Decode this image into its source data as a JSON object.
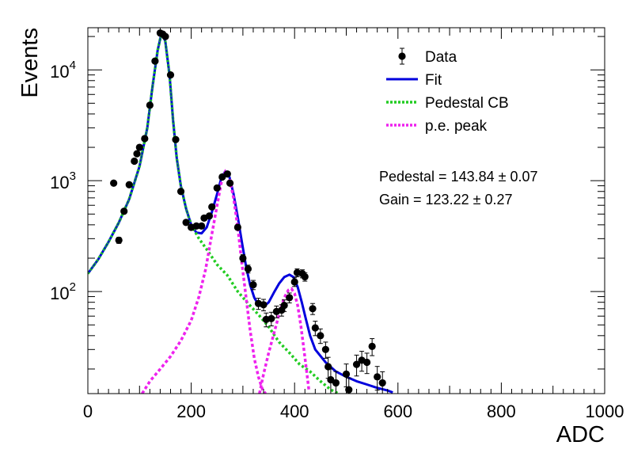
{
  "chart_data": {
    "type": "scatter",
    "xlabel": "ADC",
    "ylabel": "Events",
    "xlim": [
      0,
      1000
    ],
    "ylim": [
      12,
      24000
    ],
    "log_y": true,
    "grid": false,
    "legend_position": "top-right",
    "x_ticks": [
      {
        "value": 0,
        "label": "0"
      },
      {
        "value": 200,
        "label": "200"
      },
      {
        "value": 400,
        "label": "400"
      },
      {
        "value": 600,
        "label": "600"
      },
      {
        "value": 800,
        "label": "800"
      },
      {
        "value": 1000,
        "label": "1000"
      }
    ],
    "y_ticks": [
      {
        "value": 100,
        "base": "10",
        "exp": "2"
      },
      {
        "value": 1000,
        "base": "10",
        "exp": "3"
      },
      {
        "value": 10000,
        "base": "10",
        "exp": "4"
      }
    ],
    "legend": [
      {
        "label": "Data",
        "style": "marker",
        "color": "#000000"
      },
      {
        "label": "Fit",
        "style": "solid",
        "color": "#0000dd"
      },
      {
        "label": "Pedestal CB",
        "style": "dotted",
        "color": "#22cc22"
      },
      {
        "label": "p.e. peak",
        "style": "dotted",
        "color": "#ee22ee"
      }
    ],
    "annotations": [
      "Pedestal = 143.84 ± 0.07",
      "Gain = 123.22 ± 0.27"
    ],
    "series": [
      {
        "name": "Data",
        "color": "#000000",
        "points": [
          {
            "x": 50,
            "y": 950,
            "err": 30
          },
          {
            "x": 60,
            "y": 290,
            "err": 18
          },
          {
            "x": 70,
            "y": 530,
            "err": 24
          },
          {
            "x": 80,
            "y": 920,
            "err": 30
          },
          {
            "x": 90,
            "y": 1500,
            "err": 40
          },
          {
            "x": 95,
            "y": 1750,
            "err": 42
          },
          {
            "x": 100,
            "y": 2000,
            "err": 45
          },
          {
            "x": 110,
            "y": 2400,
            "err": 50
          },
          {
            "x": 120,
            "y": 4800,
            "err": 70
          },
          {
            "x": 130,
            "y": 12000,
            "err": 110
          },
          {
            "x": 140,
            "y": 21500,
            "err": 150
          },
          {
            "x": 145,
            "y": 21000,
            "err": 150
          },
          {
            "x": 150,
            "y": 20000,
            "err": 140
          },
          {
            "x": 160,
            "y": 9000,
            "err": 95
          },
          {
            "x": 170,
            "y": 2350,
            "err": 48
          },
          {
            "x": 180,
            "y": 800,
            "err": 28
          },
          {
            "x": 190,
            "y": 420,
            "err": 20
          },
          {
            "x": 200,
            "y": 380,
            "err": 20
          },
          {
            "x": 210,
            "y": 390,
            "err": 20
          },
          {
            "x": 220,
            "y": 390,
            "err": 20
          },
          {
            "x": 225,
            "y": 460,
            "err": 22
          },
          {
            "x": 235,
            "y": 480,
            "err": 22
          },
          {
            "x": 240,
            "y": 580,
            "err": 24
          },
          {
            "x": 250,
            "y": 860,
            "err": 30
          },
          {
            "x": 260,
            "y": 1080,
            "err": 33
          },
          {
            "x": 270,
            "y": 1150,
            "err": 34
          },
          {
            "x": 275,
            "y": 950,
            "err": 31
          },
          {
            "x": 290,
            "y": 380,
            "err": 20
          },
          {
            "x": 300,
            "y": 200,
            "err": 15
          },
          {
            "x": 310,
            "y": 160,
            "err": 13
          },
          {
            "x": 320,
            "y": 115,
            "err": 11
          },
          {
            "x": 330,
            "y": 78,
            "err": 9
          },
          {
            "x": 340,
            "y": 76,
            "err": 9
          },
          {
            "x": 345,
            "y": 56,
            "err": 8
          },
          {
            "x": 355,
            "y": 57,
            "err": 8
          },
          {
            "x": 365,
            "y": 66,
            "err": 8
          },
          {
            "x": 375,
            "y": 68,
            "err": 8
          },
          {
            "x": 380,
            "y": 75,
            "err": 9
          },
          {
            "x": 390,
            "y": 88,
            "err": 9
          },
          {
            "x": 400,
            "y": 122,
            "err": 11
          },
          {
            "x": 405,
            "y": 148,
            "err": 12
          },
          {
            "x": 415,
            "y": 145,
            "err": 12
          },
          {
            "x": 420,
            "y": 136,
            "err": 12
          },
          {
            "x": 435,
            "y": 70,
            "err": 8
          },
          {
            "x": 440,
            "y": 47,
            "err": 7
          },
          {
            "x": 450,
            "y": 40,
            "err": 6
          },
          {
            "x": 460,
            "y": 30,
            "err": 5
          },
          {
            "x": 465,
            "y": 21,
            "err": 4.5
          },
          {
            "x": 470,
            "y": 16,
            "err": 4
          },
          {
            "x": 480,
            "y": 15,
            "err": 4
          },
          {
            "x": 500,
            "y": 18,
            "err": 4.2
          },
          {
            "x": 505,
            "y": 13,
            "err": 3.6
          },
          {
            "x": 520,
            "y": 22,
            "err": 4.7
          },
          {
            "x": 530,
            "y": 24,
            "err": 4.9
          },
          {
            "x": 540,
            "y": 23,
            "err": 4.8
          },
          {
            "x": 550,
            "y": 32,
            "err": 5.6
          },
          {
            "x": 560,
            "y": 17,
            "err": 4.1
          },
          {
            "x": 570,
            "y": 15,
            "err": 3.9
          }
        ]
      },
      {
        "name": "Fit",
        "color": "#0000dd",
        "points": [
          {
            "x": 0,
            "y": 145
          },
          {
            "x": 20,
            "y": 195
          },
          {
            "x": 40,
            "y": 280
          },
          {
            "x": 60,
            "y": 420
          },
          {
            "x": 80,
            "y": 680
          },
          {
            "x": 100,
            "y": 1350
          },
          {
            "x": 115,
            "y": 3000
          },
          {
            "x": 125,
            "y": 7000
          },
          {
            "x": 135,
            "y": 15000
          },
          {
            "x": 143,
            "y": 22000
          },
          {
            "x": 150,
            "y": 18000
          },
          {
            "x": 158,
            "y": 9000
          },
          {
            "x": 165,
            "y": 3500
          },
          {
            "x": 172,
            "y": 1600
          },
          {
            "x": 180,
            "y": 900
          },
          {
            "x": 190,
            "y": 560
          },
          {
            "x": 200,
            "y": 400
          },
          {
            "x": 210,
            "y": 340
          },
          {
            "x": 220,
            "y": 335
          },
          {
            "x": 230,
            "y": 380
          },
          {
            "x": 240,
            "y": 520
          },
          {
            "x": 250,
            "y": 760
          },
          {
            "x": 258,
            "y": 1050
          },
          {
            "x": 266,
            "y": 1220
          },
          {
            "x": 274,
            "y": 1080
          },
          {
            "x": 282,
            "y": 760
          },
          {
            "x": 290,
            "y": 470
          },
          {
            "x": 298,
            "y": 280
          },
          {
            "x": 306,
            "y": 170
          },
          {
            "x": 314,
            "y": 115
          },
          {
            "x": 322,
            "y": 88
          },
          {
            "x": 330,
            "y": 76
          },
          {
            "x": 340,
            "y": 73
          },
          {
            "x": 350,
            "y": 80
          },
          {
            "x": 360,
            "y": 98
          },
          {
            "x": 370,
            "y": 118
          },
          {
            "x": 380,
            "y": 135
          },
          {
            "x": 390,
            "y": 142
          },
          {
            "x": 398,
            "y": 135
          },
          {
            "x": 406,
            "y": 110
          },
          {
            "x": 414,
            "y": 80
          },
          {
            "x": 422,
            "y": 56
          },
          {
            "x": 430,
            "y": 40
          },
          {
            "x": 440,
            "y": 30
          },
          {
            "x": 460,
            "y": 23
          },
          {
            "x": 480,
            "y": 19
          },
          {
            "x": 500,
            "y": 17
          },
          {
            "x": 520,
            "y": 15.5
          },
          {
            "x": 540,
            "y": 14.5
          },
          {
            "x": 560,
            "y": 13.5
          },
          {
            "x": 580,
            "y": 12.8
          },
          {
            "x": 590,
            "y": 12.3
          }
        ]
      },
      {
        "name": "Pedestal CB",
        "color": "#22cc22",
        "points": [
          {
            "x": 0,
            "y": 145
          },
          {
            "x": 20,
            "y": 195
          },
          {
            "x": 40,
            "y": 280
          },
          {
            "x": 60,
            "y": 420
          },
          {
            "x": 80,
            "y": 680
          },
          {
            "x": 100,
            "y": 1350
          },
          {
            "x": 115,
            "y": 3000
          },
          {
            "x": 125,
            "y": 7000
          },
          {
            "x": 135,
            "y": 15000
          },
          {
            "x": 143,
            "y": 22000
          },
          {
            "x": 150,
            "y": 18000
          },
          {
            "x": 158,
            "y": 9000
          },
          {
            "x": 165,
            "y": 3500
          },
          {
            "x": 172,
            "y": 1600
          },
          {
            "x": 180,
            "y": 900
          },
          {
            "x": 190,
            "y": 560
          },
          {
            "x": 200,
            "y": 400
          },
          {
            "x": 215,
            "y": 300
          },
          {
            "x": 230,
            "y": 240
          },
          {
            "x": 250,
            "y": 175
          },
          {
            "x": 270,
            "y": 140
          },
          {
            "x": 290,
            "y": 100
          },
          {
            "x": 310,
            "y": 78
          },
          {
            "x": 330,
            "y": 62
          },
          {
            "x": 350,
            "y": 48
          },
          {
            "x": 370,
            "y": 35
          },
          {
            "x": 390,
            "y": 28
          },
          {
            "x": 410,
            "y": 22
          },
          {
            "x": 430,
            "y": 19
          },
          {
            "x": 450,
            "y": 15.5
          },
          {
            "x": 470,
            "y": 13
          },
          {
            "x": 485,
            "y": 12
          }
        ]
      },
      {
        "name": "p.e. peak",
        "color": "#ee22ee",
        "segments": [
          [
            {
              "x": 105,
              "y": 12
            },
            {
              "x": 120,
              "y": 15.5
            },
            {
              "x": 140,
              "y": 20
            },
            {
              "x": 160,
              "y": 26
            },
            {
              "x": 180,
              "y": 36
            },
            {
              "x": 200,
              "y": 55
            },
            {
              "x": 215,
              "y": 90
            },
            {
              "x": 228,
              "y": 160
            },
            {
              "x": 240,
              "y": 330
            },
            {
              "x": 250,
              "y": 600
            },
            {
              "x": 258,
              "y": 950
            },
            {
              "x": 266,
              "y": 1200
            },
            {
              "x": 274,
              "y": 1050
            },
            {
              "x": 282,
              "y": 700
            },
            {
              "x": 290,
              "y": 380
            },
            {
              "x": 298,
              "y": 180
            },
            {
              "x": 306,
              "y": 90
            },
            {
              "x": 314,
              "y": 45
            },
            {
              "x": 322,
              "y": 25
            },
            {
              "x": 330,
              "y": 17
            },
            {
              "x": 338,
              "y": 13
            },
            {
              "x": 344,
              "y": 12
            }
          ],
          [
            {
              "x": 332,
              "y": 12
            },
            {
              "x": 340,
              "y": 18
            },
            {
              "x": 350,
              "y": 28
            },
            {
              "x": 360,
              "y": 42
            },
            {
              "x": 370,
              "y": 62
            },
            {
              "x": 380,
              "y": 88
            },
            {
              "x": 388,
              "y": 103
            },
            {
              "x": 394,
              "y": 106
            },
            {
              "x": 400,
              "y": 96
            },
            {
              "x": 406,
              "y": 75
            },
            {
              "x": 412,
              "y": 50
            },
            {
              "x": 418,
              "y": 30
            },
            {
              "x": 424,
              "y": 18
            },
            {
              "x": 428,
              "y": 12.5
            }
          ]
        ]
      }
    ]
  }
}
